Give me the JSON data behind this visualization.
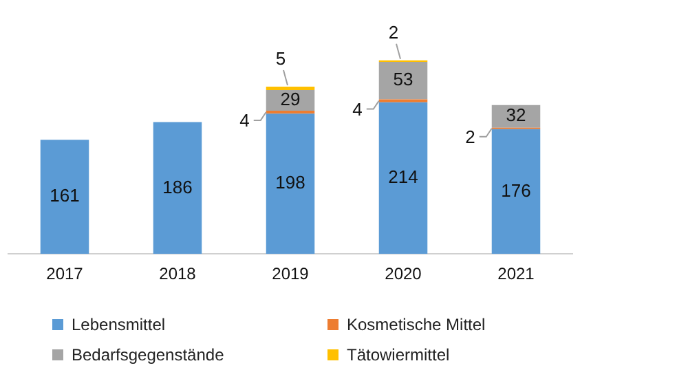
{
  "chart_data": {
    "type": "bar",
    "stacked": true,
    "tick_labels": "x",
    "data_labels": true,
    "legend": "bottom",
    "grid": false,
    "categories": [
      "2017",
      "2018",
      "2019",
      "2020",
      "2021"
    ],
    "series": [
      {
        "name": "Lebensmittel",
        "color": "#5b9bd5",
        "values": [
          161,
          186,
          198,
          214,
          176
        ]
      },
      {
        "name": "Kosmetische Mittel",
        "color": "#ed7d31",
        "values": [
          null,
          null,
          4,
          4,
          2
        ]
      },
      {
        "name": "Bedarfsgegenstände",
        "color": "#a5a5a5",
        "values": [
          null,
          null,
          29,
          53,
          32
        ]
      },
      {
        "name": "Tätowiermittel",
        "color": "#ffc000",
        "values": [
          null,
          null,
          5,
          2,
          null
        ]
      }
    ]
  }
}
